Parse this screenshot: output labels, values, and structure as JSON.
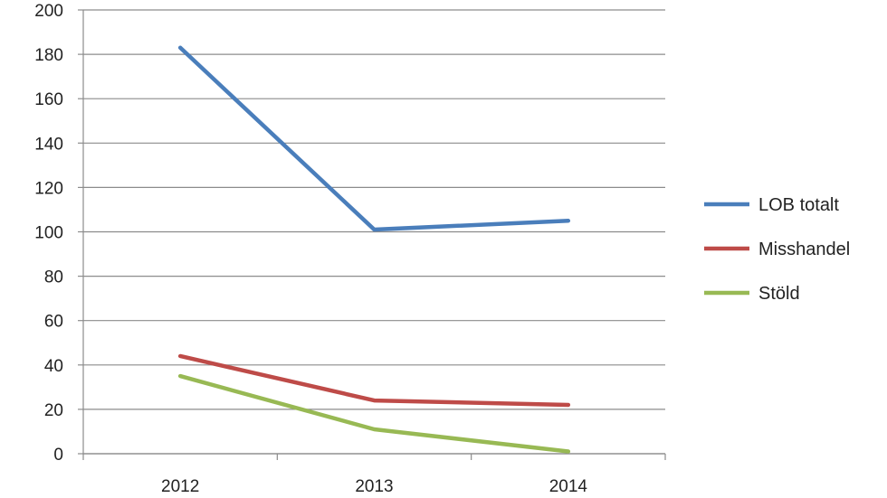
{
  "chart_data": {
    "type": "line",
    "categories": [
      "2012",
      "2013",
      "2014"
    ],
    "series": [
      {
        "name": "LOB totalt",
        "values": [
          183,
          101,
          105
        ],
        "color": "#4a7ebb"
      },
      {
        "name": "Misshandel",
        "values": [
          44,
          24,
          22
        ],
        "color": "#be4b48"
      },
      {
        "name": "Stöld",
        "values": [
          35,
          11,
          1
        ],
        "color": "#98b954"
      }
    ],
    "title": "",
    "xlabel": "",
    "ylabel": "",
    "ylim": [
      0,
      200
    ],
    "yticks": [
      "0",
      "20",
      "40",
      "60",
      "80",
      "100",
      "120",
      "140",
      "160",
      "180",
      "200"
    ],
    "grid": true,
    "legend_position": "right"
  }
}
